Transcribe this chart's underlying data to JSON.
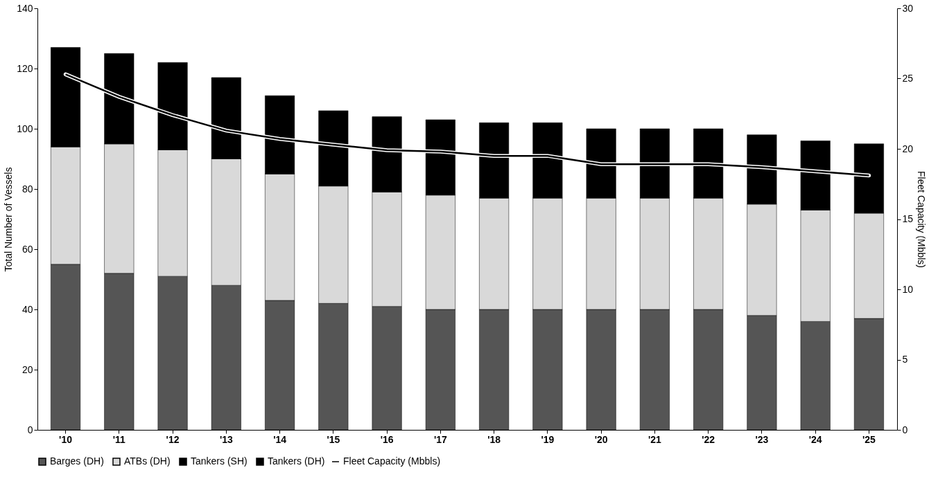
{
  "chart_data": {
    "type": "bar",
    "stacked": true,
    "ylabel": "Total Number of Vessels",
    "y2label": "Fleet Capacity (Mbbls)",
    "categories": [
      "'10",
      "'11",
      "'12",
      "'13",
      "'14",
      "'15",
      "'16",
      "'17",
      "'18",
      "'19",
      "'20",
      "'21",
      "'22",
      "'23",
      "'24",
      "'25"
    ],
    "ylim": [
      0,
      140
    ],
    "yticks": [
      0,
      20,
      40,
      60,
      80,
      100,
      120,
      140
    ],
    "y2lim": [
      0,
      30
    ],
    "y2ticks": [
      0,
      5,
      10,
      15,
      20,
      25,
      30
    ],
    "grid": false,
    "legend": "bottom",
    "series": [
      {
        "name": "Barges (DH)",
        "color": "#555555",
        "values": [
          55,
          52,
          51,
          48,
          43,
          42,
          41,
          40,
          40,
          40,
          40,
          40,
          40,
          38,
          36,
          37
        ]
      },
      {
        "name": "ATBs (DH)",
        "color": "#d9d9d9",
        "values": [
          39,
          43,
          42,
          42,
          42,
          39,
          38,
          38,
          37,
          37,
          37,
          37,
          37,
          37,
          37,
          35
        ]
      },
      {
        "name": "Tankers (SH)",
        "color": "#000000",
        "values": [
          0,
          0,
          0,
          0,
          0,
          0,
          0,
          0,
          0,
          0,
          0,
          0,
          0,
          0,
          0,
          0
        ]
      },
      {
        "name": "Tankers (DH)",
        "color": "#000000",
        "values": [
          33,
          30,
          29,
          27,
          26,
          25,
          25,
          25,
          25,
          25,
          23,
          23,
          23,
          23,
          23,
          23
        ]
      },
      {
        "name": "Fleet Capacity (Mbbls)",
        "type": "line",
        "axis": "y2",
        "color": "#000000",
        "values": [
          25.3,
          23.7,
          22.4,
          21.3,
          20.7,
          20.3,
          19.9,
          19.8,
          19.5,
          19.5,
          18.9,
          18.9,
          18.9,
          18.7,
          18.4,
          18.1
        ]
      }
    ]
  }
}
